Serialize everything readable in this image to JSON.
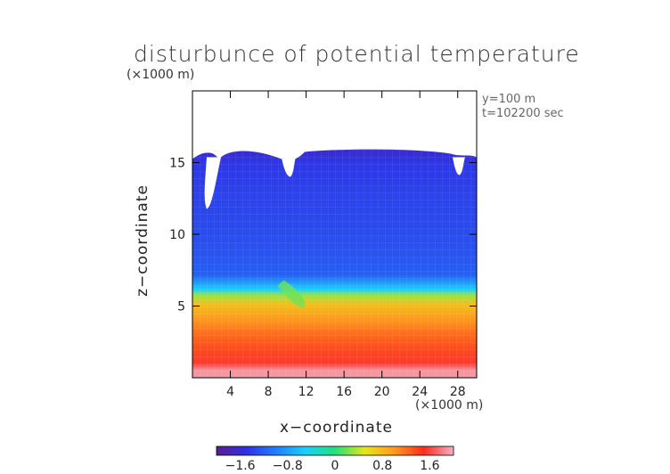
{
  "chart_data": {
    "type": "heatmap",
    "title": "disturbunce of potential temperature",
    "y_units": "(×1000 m)",
    "x_units": "(×1000 m)",
    "xlabel": "x−coordinate",
    "ylabel": "z−coordinate",
    "annotations": [
      "y=100 m",
      "t=102200 sec"
    ],
    "xlim": [
      0,
      30
    ],
    "ylim": [
      0,
      20
    ],
    "x_ticks": [
      4,
      8,
      12,
      16,
      20,
      24,
      28
    ],
    "x_tick_labels": [
      "4",
      "8",
      "12",
      "16",
      "20",
      "24",
      "28"
    ],
    "y_ticks": [
      5,
      10,
      15
    ],
    "y_tick_labels": [
      "5",
      "10",
      "15"
    ],
    "colorbar": {
      "min": -2.0,
      "max": 2.0,
      "ticks": [
        -1.6,
        -0.8,
        0,
        0.8,
        1.6
      ],
      "tick_labels": [
        "−1.6",
        "−0.8",
        "0",
        "0.8",
        "1.6"
      ],
      "colors": [
        "#5a1e8c",
        "#2f2fe6",
        "#1f7fff",
        "#19d0ff",
        "#22e07a",
        "#e6e61c",
        "#ff9a1c",
        "#ff2a1c",
        "#f2b2c4"
      ]
    },
    "field_profile_z": [
      0.5,
      1,
      2,
      3,
      4,
      5,
      5.6,
      6,
      7,
      9,
      11,
      13,
      14.5,
      15.3
    ],
    "field_profile_value": [
      1.9,
      1.55,
      1.35,
      1.2,
      1.0,
      0.75,
      0.3,
      -0.5,
      -1.2,
      -1.3,
      -1.35,
      -1.4,
      -1.45,
      -1.6
    ],
    "top_boundary_z": 15.5
  }
}
